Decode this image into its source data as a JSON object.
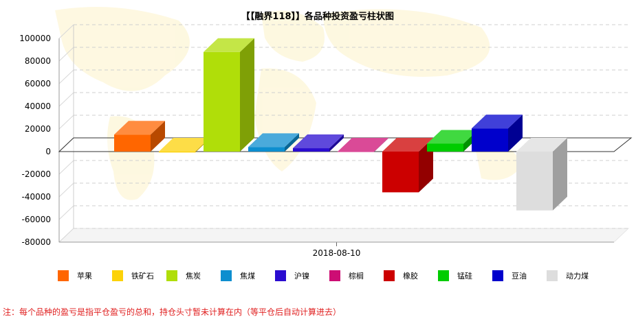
{
  "chart_data": {
    "type": "bar",
    "title": "【【融界118】】各品种投资盈亏柱状图",
    "categories": [
      "2018-08-10"
    ],
    "ylim": [
      -80000,
      100000
    ],
    "yticks": [
      100000,
      80000,
      60000,
      40000,
      20000,
      0,
      -20000,
      -40000,
      -60000,
      -80000
    ],
    "grid": true,
    "legend_position": "bottom",
    "series": [
      {
        "name": "苹果",
        "values": [
          15000
        ],
        "color": "#ff6600"
      },
      {
        "name": "铁矿石",
        "values": [
          -800
        ],
        "color": "#fcd209"
      },
      {
        "name": "焦炭",
        "values": [
          88000
        ],
        "color": "#b0de09"
      },
      {
        "name": "焦煤",
        "values": [
          4000
        ],
        "color": "#0d8ecf"
      },
      {
        "name": "沪镍",
        "values": [
          3000
        ],
        "color": "#2a0cd0"
      },
      {
        "name": "棕榈",
        "values": [
          -300
        ],
        "color": "#cd0d74"
      },
      {
        "name": "橡胶",
        "values": [
          -36000
        ],
        "color": "#cc0000"
      },
      {
        "name": "锰硅",
        "values": [
          7000
        ],
        "color": "#00cc00"
      },
      {
        "name": "豆油",
        "values": [
          20500
        ],
        "color": "#0000cc"
      },
      {
        "name": "动力煤",
        "values": [
          -52000
        ],
        "color": "#dddddd"
      }
    ]
  },
  "footer": {
    "note": "注：每个品种的盈亏是指平仓盈亏的总和，持仓头寸暂未计算在内（等平仓后自动计算进去）"
  }
}
